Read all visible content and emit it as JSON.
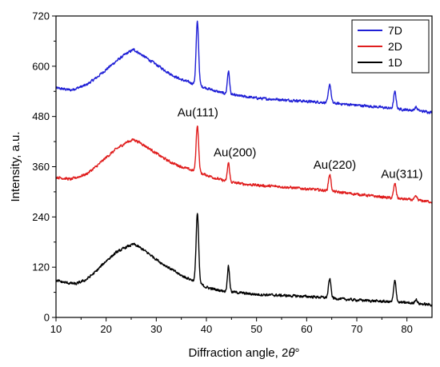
{
  "chart_data": {
    "type": "line",
    "xlabel_prefix": "Diffraction angle, 2",
    "xlabel_theta": "θ",
    "xlabel_suffix": "°",
    "ylabel": "Intensity, a.u.",
    "xlim": [
      10,
      85
    ],
    "ylim": [
      0,
      720
    ],
    "xticks": [
      10,
      20,
      30,
      40,
      50,
      60,
      70,
      80
    ],
    "yticks": [
      0,
      120,
      240,
      360,
      480,
      600,
      720
    ],
    "grid": false,
    "legend_position": "top-right",
    "series": [
      {
        "name": "7D",
        "color": "#1f1fd6",
        "baseline": [
          [
            10,
            548
          ],
          [
            13,
            543
          ],
          [
            16,
            555
          ],
          [
            18,
            572
          ],
          [
            20,
            592
          ],
          [
            22,
            612
          ],
          [
            24,
            630
          ],
          [
            25.5,
            640
          ],
          [
            27,
            628
          ],
          [
            29,
            612
          ],
          [
            31,
            596
          ],
          [
            33,
            580
          ],
          [
            35,
            568
          ],
          [
            37,
            560
          ],
          [
            38,
            556
          ],
          [
            40,
            548
          ],
          [
            42,
            540
          ],
          [
            44,
            534
          ],
          [
            46,
            530
          ],
          [
            48,
            527
          ],
          [
            50,
            524
          ],
          [
            52,
            522
          ],
          [
            54,
            521
          ],
          [
            56,
            519
          ],
          [
            58,
            518
          ],
          [
            60,
            516
          ],
          [
            63,
            514
          ],
          [
            65,
            512
          ],
          [
            68,
            509
          ],
          [
            71,
            506
          ],
          [
            74,
            503
          ],
          [
            77,
            499
          ],
          [
            80,
            496
          ],
          [
            82,
            494
          ],
          [
            85,
            490
          ]
        ],
        "peaks": [
          [
            38.2,
            150,
            0.25
          ],
          [
            44.4,
            55,
            0.22
          ],
          [
            64.6,
            45,
            0.25
          ],
          [
            77.6,
            40,
            0.25
          ],
          [
            81.8,
            8,
            0.25
          ]
        ]
      },
      {
        "name": "2D",
        "color": "#e01e1e",
        "baseline": [
          [
            10,
            335
          ],
          [
            13,
            330
          ],
          [
            16,
            342
          ],
          [
            18,
            360
          ],
          [
            20,
            382
          ],
          [
            22,
            402
          ],
          [
            24,
            418
          ],
          [
            25.5,
            425
          ],
          [
            27,
            416
          ],
          [
            29,
            400
          ],
          [
            31,
            384
          ],
          [
            33,
            370
          ],
          [
            35,
            360
          ],
          [
            37,
            352
          ],
          [
            38,
            348
          ],
          [
            40,
            340
          ],
          [
            42,
            332
          ],
          [
            44,
            325
          ],
          [
            46,
            321
          ],
          [
            48,
            318
          ],
          [
            50,
            316
          ],
          [
            52,
            314
          ],
          [
            54,
            313
          ],
          [
            56,
            311
          ],
          [
            58,
            309
          ],
          [
            60,
            307
          ],
          [
            63,
            304
          ],
          [
            65,
            301
          ],
          [
            68,
            297
          ],
          [
            71,
            293
          ],
          [
            74,
            289
          ],
          [
            77,
            285
          ],
          [
            80,
            282
          ],
          [
            82,
            280
          ],
          [
            85,
            276
          ]
        ],
        "peaks": [
          [
            38.2,
            112,
            0.25
          ],
          [
            44.4,
            45,
            0.22
          ],
          [
            64.6,
            40,
            0.25
          ],
          [
            77.6,
            35,
            0.25
          ],
          [
            81.8,
            8,
            0.25
          ]
        ]
      },
      {
        "name": "1D",
        "color": "#000000",
        "baseline": [
          [
            10,
            88
          ],
          [
            12,
            83
          ],
          [
            14,
            80
          ],
          [
            16,
            90
          ],
          [
            18,
            110
          ],
          [
            20,
            135
          ],
          [
            22,
            155
          ],
          [
            24,
            168
          ],
          [
            25.5,
            175
          ],
          [
            27,
            165
          ],
          [
            29,
            148
          ],
          [
            31,
            130
          ],
          [
            33,
            115
          ],
          [
            35,
            100
          ],
          [
            37,
            90
          ],
          [
            38,
            85
          ],
          [
            40,
            72
          ],
          [
            42,
            66
          ],
          [
            44,
            62
          ],
          [
            46,
            60
          ],
          [
            48,
            57
          ],
          [
            50,
            55
          ],
          [
            52,
            54
          ],
          [
            54,
            53
          ],
          [
            56,
            52
          ],
          [
            58,
            51
          ],
          [
            60,
            50
          ],
          [
            63,
            48
          ],
          [
            65,
            46
          ],
          [
            68,
            43
          ],
          [
            71,
            41
          ],
          [
            74,
            39
          ],
          [
            77,
            37
          ],
          [
            80,
            35
          ],
          [
            82,
            33
          ],
          [
            85,
            30
          ]
        ],
        "peaks": [
          [
            38.2,
            165,
            0.25
          ],
          [
            44.4,
            60,
            0.22
          ],
          [
            64.6,
            45,
            0.25
          ],
          [
            77.6,
            50,
            0.25
          ],
          [
            81.8,
            10,
            0.25
          ]
        ]
      }
    ],
    "annotations": [
      {
        "text": "Au(111)",
        "x": 38.3,
        "y": 480
      },
      {
        "text": "Au(200)",
        "x": 45.7,
        "y": 385
      },
      {
        "text": "Au(220)",
        "x": 65.6,
        "y": 355
      },
      {
        "text": "Au(311)",
        "x": 79.0,
        "y": 333
      }
    ]
  }
}
